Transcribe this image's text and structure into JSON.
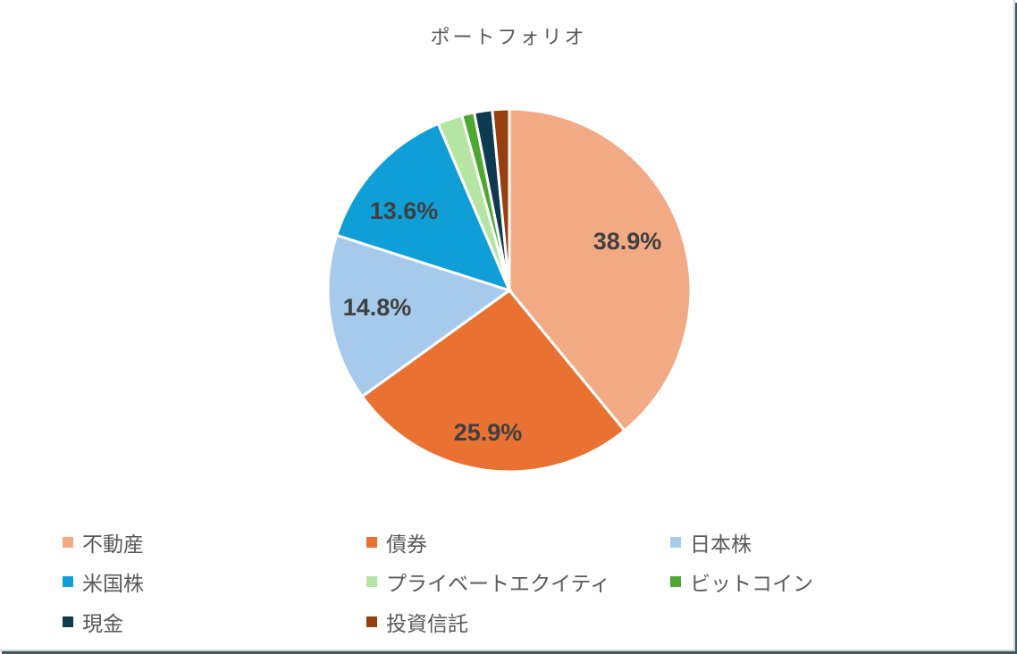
{
  "chart": {
    "title": "ポートフォリオ"
  },
  "chart_data": {
    "type": "pie",
    "title": "ポートフォリオ",
    "categories": [
      "不動産",
      "債券",
      "日本株",
      "米国株",
      "プライベートエクイティ",
      "ビットコイン",
      "現金",
      "投資信託"
    ],
    "values": [
      38.9,
      25.9,
      14.8,
      13.6,
      2.2,
      1.1,
      1.6,
      1.5
    ],
    "data_labels": [
      "38.9%",
      "25.9%",
      "14.8%",
      "13.6%",
      "",
      "",
      "",
      ""
    ],
    "colors": [
      "#f2aa84",
      "#e97132",
      "#a6caec",
      "#0f9ed5",
      "#b4e5a2",
      "#4ea72e",
      "#0e3a4f",
      "#963f10"
    ],
    "legend_position": "bottom",
    "start_angle_deg": 0,
    "direction": "clockwise"
  },
  "legend": {
    "items": [
      {
        "label": "不動産",
        "color": "#f2aa84"
      },
      {
        "label": "債券",
        "color": "#e97132"
      },
      {
        "label": "日本株",
        "color": "#a6caec"
      },
      {
        "label": "米国株",
        "color": "#0f9ed5"
      },
      {
        "label": "プライベートエクイティ",
        "color": "#b4e5a2"
      },
      {
        "label": "ビットコイン",
        "color": "#4ea72e"
      },
      {
        "label": "現金",
        "color": "#0e3a4f"
      },
      {
        "label": "投資信託",
        "color": "#963f10"
      }
    ]
  }
}
